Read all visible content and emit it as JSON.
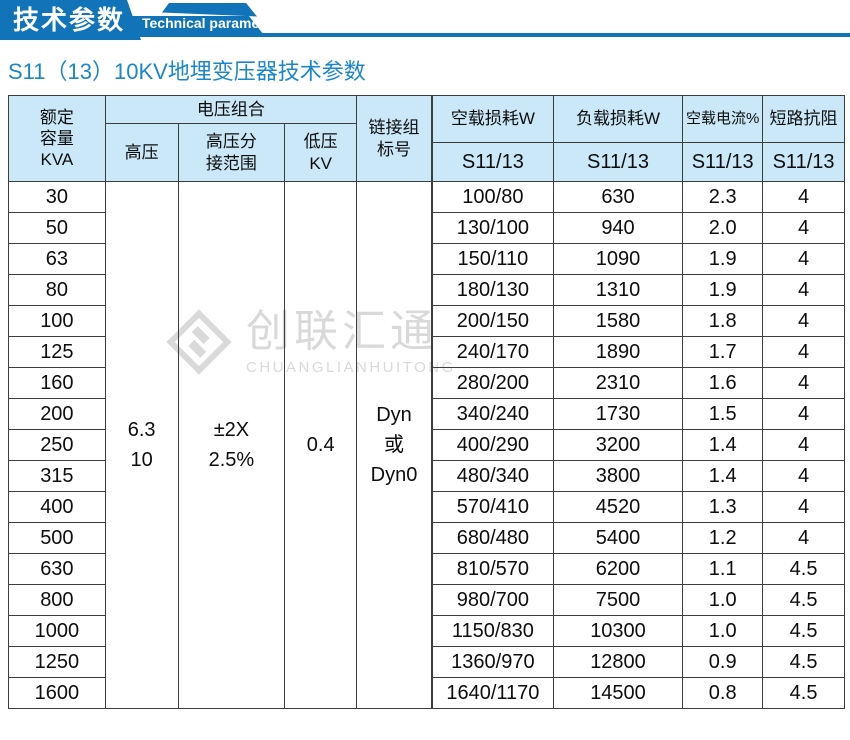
{
  "ribbon": {
    "title_cn": "技术参数",
    "title_en": "Technical parameter"
  },
  "page_title": "S11（13）10KV地埋变压器技术参数",
  "watermark": {
    "name_cn": "创联汇通",
    "name_en": "CHUANGLIANHUITONG"
  },
  "colors": {
    "primary_blue": "#1173b8",
    "header_bg": "#cbe8f8",
    "title_blue": "#1b87c9",
    "border": "#3d3d3d",
    "watermark_gray": "#d9d9d9"
  },
  "table": {
    "headers": {
      "capacity": "额定\n容量\nKVA",
      "voltage_group": "电压组合",
      "high_voltage": "高压",
      "tap_range": "高压分\n接范围",
      "low_voltage": "低压\nKV",
      "vector_group": "链接组\n标号",
      "no_load_loss": "空载损耗W",
      "load_loss": "负载损耗W",
      "no_load_current": "空载电流%",
      "impedance": "短路抗阻",
      "model": "S11/13"
    },
    "merged": {
      "high_voltage": "6.3\n10",
      "tap_range": "±2X\n2.5%",
      "low_voltage": "0.4",
      "vector_group": "Dyn\n或\nDyn0"
    },
    "rows": [
      {
        "capacity": "30",
        "no_load_loss": "100/80",
        "load_loss": "630",
        "no_load_current": "2.3",
        "impedance": "4"
      },
      {
        "capacity": "50",
        "no_load_loss": "130/100",
        "load_loss": "940",
        "no_load_current": "2.0",
        "impedance": "4"
      },
      {
        "capacity": "63",
        "no_load_loss": "150/110",
        "load_loss": "1090",
        "no_load_current": "1.9",
        "impedance": "4"
      },
      {
        "capacity": "80",
        "no_load_loss": "180/130",
        "load_loss": "1310",
        "no_load_current": "1.9",
        "impedance": "4"
      },
      {
        "capacity": "100",
        "no_load_loss": "200/150",
        "load_loss": "1580",
        "no_load_current": "1.8",
        "impedance": "4"
      },
      {
        "capacity": "125",
        "no_load_loss": "240/170",
        "load_loss": "1890",
        "no_load_current": "1.7",
        "impedance": "4"
      },
      {
        "capacity": "160",
        "no_load_loss": "280/200",
        "load_loss": "2310",
        "no_load_current": "1.6",
        "impedance": "4"
      },
      {
        "capacity": "200",
        "no_load_loss": "340/240",
        "load_loss": "1730",
        "no_load_current": "1.5",
        "impedance": "4"
      },
      {
        "capacity": "250",
        "no_load_loss": "400/290",
        "load_loss": "3200",
        "no_load_current": "1.4",
        "impedance": "4"
      },
      {
        "capacity": "315",
        "no_load_loss": "480/340",
        "load_loss": "3800",
        "no_load_current": "1.4",
        "impedance": "4"
      },
      {
        "capacity": "400",
        "no_load_loss": "570/410",
        "load_loss": "4520",
        "no_load_current": "1.3",
        "impedance": "4"
      },
      {
        "capacity": "500",
        "no_load_loss": "680/480",
        "load_loss": "5400",
        "no_load_current": "1.2",
        "impedance": "4"
      },
      {
        "capacity": "630",
        "no_load_loss": "810/570",
        "load_loss": "6200",
        "no_load_current": "1.1",
        "impedance": "4.5"
      },
      {
        "capacity": "800",
        "no_load_loss": "980/700",
        "load_loss": "7500",
        "no_load_current": "1.0",
        "impedance": "4.5"
      },
      {
        "capacity": "1000",
        "no_load_loss": "1150/830",
        "load_loss": "10300",
        "no_load_current": "1.0",
        "impedance": "4.5"
      },
      {
        "capacity": "1250",
        "no_load_loss": "1360/970",
        "load_loss": "12800",
        "no_load_current": "0.9",
        "impedance": "4.5"
      },
      {
        "capacity": "1600",
        "no_load_loss": "1640/1170",
        "load_loss": "14500",
        "no_load_current": "0.8",
        "impedance": "4.5"
      }
    ]
  }
}
